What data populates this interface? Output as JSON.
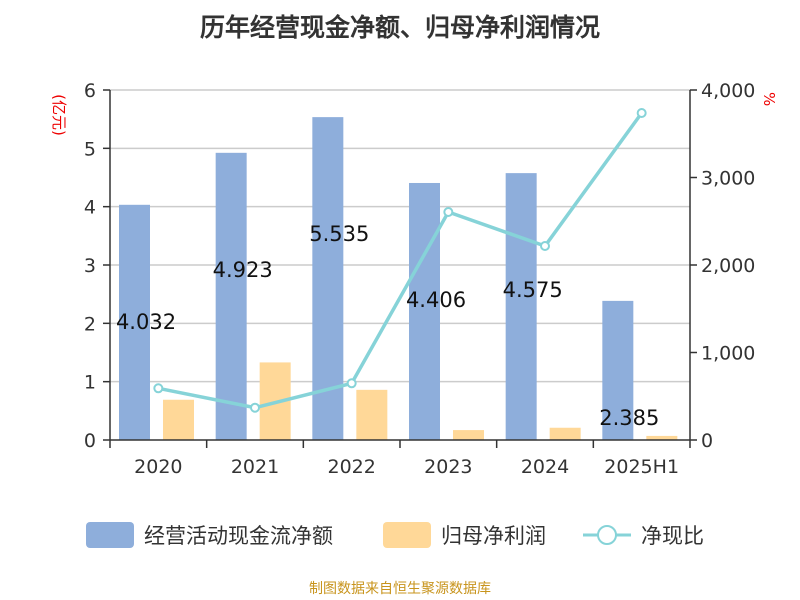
{
  "chart_data": {
    "type": "bar",
    "title": "历年经营现金净额、归母净利润情况",
    "categories": [
      "2020",
      "2021",
      "2022",
      "2023",
      "2024",
      "2025H1"
    ],
    "ylabel": "(亿元)",
    "y2label": "%",
    "ylim": [
      0,
      6
    ],
    "y2lim": [
      0,
      4000
    ],
    "yticks": [
      "0",
      "1",
      "2",
      "3",
      "4",
      "5",
      "6"
    ],
    "y2ticks": [
      "0",
      "1,000",
      "2,000",
      "3,000",
      "4,000"
    ],
    "grid": true,
    "legend_position": "bottom",
    "series": [
      {
        "name": "经营活动现金流净额",
        "type": "bar",
        "axis": "left",
        "color": "#8eaedb",
        "values": [
          4.032,
          4.923,
          5.535,
          4.406,
          4.575,
          2.385
        ],
        "labels": [
          "4.032",
          "4.923",
          "5.535",
          "4.406",
          "4.575",
          "2.385"
        ]
      },
      {
        "name": "归母净利润",
        "type": "bar",
        "axis": "left",
        "color": "#ffd898",
        "values": [
          0.69,
          1.33,
          0.86,
          0.17,
          0.21,
          0.07
        ]
      },
      {
        "name": "净现比",
        "type": "line",
        "axis": "right",
        "color": "#86d3d8",
        "values": [
          591,
          369,
          648,
          2606,
          2217,
          3737
        ]
      }
    ]
  },
  "source": "制图数据来自恒生聚源数据库"
}
